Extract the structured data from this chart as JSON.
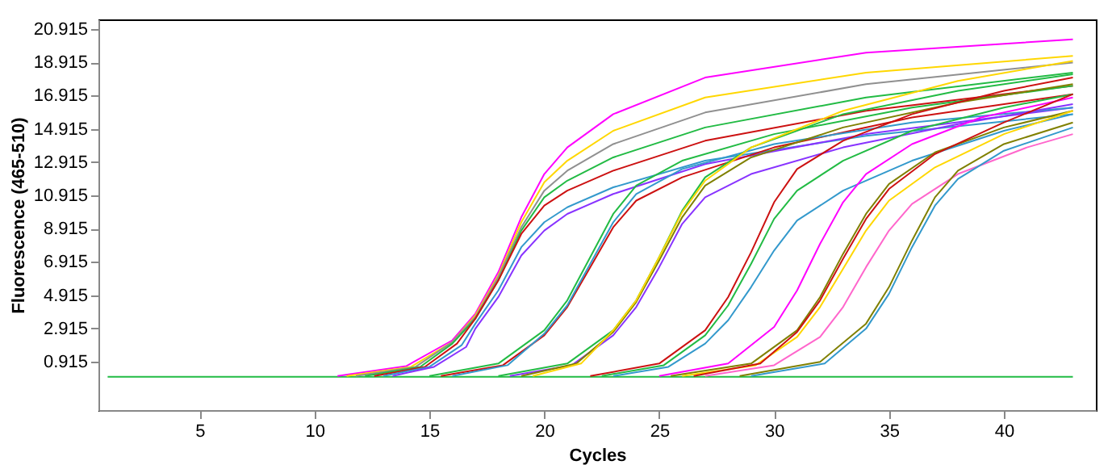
{
  "chart_data": {
    "type": "line",
    "xlabel": "Cycles",
    "ylabel": "Fluorescence (465-510)",
    "xlim": [
      0.6,
      44
    ],
    "ylim": [
      -2,
      21.5
    ],
    "xticks": [
      5,
      10,
      15,
      20,
      25,
      30,
      35,
      40
    ],
    "yticks": [
      0.915,
      2.915,
      4.915,
      6.915,
      8.915,
      10.915,
      12.915,
      14.915,
      16.915,
      18.915,
      20.915
    ],
    "grid": false,
    "legend": false,
    "series": [
      {
        "color": "#22bb44",
        "x": [
          1,
          43
        ],
        "values": [
          0,
          0
        ]
      },
      {
        "color": "#ff00ff",
        "x": [
          11.0,
          14,
          16,
          17,
          18,
          19,
          20,
          21,
          23,
          27,
          34,
          43
        ],
        "values": [
          0.05,
          0.65,
          2.2,
          3.8,
          6.3,
          9.6,
          12.2,
          13.8,
          15.8,
          18.0,
          19.5,
          20.3
        ]
      },
      {
        "color": "#ffd700",
        "x": [
          11.4,
          14.2,
          16,
          17,
          18,
          19,
          20,
          21,
          23,
          27,
          34,
          43
        ],
        "values": [
          0.05,
          0.6,
          2.1,
          3.7,
          6.1,
          9.3,
          11.7,
          13.0,
          14.8,
          16.8,
          18.3,
          19.3
        ]
      },
      {
        "color": "#909090",
        "x": [
          11.8,
          14.4,
          16,
          17,
          18,
          19,
          20,
          21,
          23,
          27,
          34,
          43
        ],
        "values": [
          0.05,
          0.6,
          2.1,
          3.6,
          6.0,
          9.0,
          11.2,
          12.4,
          14.0,
          15.9,
          17.6,
          18.9
        ]
      },
      {
        "color": "#22bb44",
        "x": [
          12.2,
          14.6,
          16,
          17,
          18,
          19,
          20,
          21,
          23,
          27,
          34,
          43
        ],
        "values": [
          0.05,
          0.6,
          2.0,
          3.5,
          5.8,
          8.8,
          10.8,
          11.8,
          13.2,
          15.0,
          16.8,
          18.3
        ]
      },
      {
        "color": "#cc1111",
        "x": [
          12.6,
          14.8,
          16.2,
          17,
          18,
          19,
          20,
          21,
          23,
          27,
          34,
          43
        ],
        "values": [
          0.05,
          0.6,
          2.0,
          3.5,
          5.8,
          8.6,
          10.3,
          11.2,
          12.4,
          14.2,
          16.0,
          17.5
        ]
      },
      {
        "color": "#3399cc",
        "x": [
          13.0,
          15.0,
          16.4,
          17,
          18,
          19,
          20,
          21,
          23,
          27,
          34,
          43
        ],
        "values": [
          0.05,
          0.6,
          1.9,
          3.2,
          5.2,
          7.8,
          9.3,
          10.2,
          11.4,
          13.0,
          14.5,
          15.8
        ]
      },
      {
        "color": "#8833ff",
        "x": [
          13.4,
          15.2,
          16.6,
          17,
          18,
          19,
          20,
          21,
          23,
          27,
          34,
          43
        ],
        "values": [
          0.05,
          0.6,
          1.8,
          2.9,
          4.8,
          7.3,
          8.8,
          9.8,
          11.0,
          12.8,
          14.6,
          16.2
        ]
      },
      {
        "color": "#22bb44",
        "x": [
          15.0,
          18,
          20,
          21,
          22,
          23,
          24,
          26,
          30,
          36,
          43
        ],
        "values": [
          0.05,
          0.8,
          2.8,
          4.6,
          7.2,
          9.8,
          11.5,
          13.0,
          14.6,
          16.2,
          17.5
        ]
      },
      {
        "color": "#cc1111",
        "x": [
          15.5,
          18.2,
          20,
          21,
          22,
          23,
          24,
          26,
          30,
          36,
          43
        ],
        "values": [
          0.05,
          0.7,
          2.5,
          4.2,
          6.6,
          9.0,
          10.6,
          12.0,
          13.8,
          15.6,
          17.0
        ]
      },
      {
        "color": "#3399cc",
        "x": [
          16.0,
          18.4,
          20,
          21,
          22,
          23,
          24,
          26,
          30,
          36,
          43
        ],
        "values": [
          0.05,
          0.7,
          2.6,
          4.3,
          6.8,
          9.3,
          11.0,
          12.5,
          14.0,
          15.3,
          16.2
        ]
      },
      {
        "color": "#22bb44",
        "x": [
          18.0,
          21,
          23,
          24,
          25,
          26,
          27,
          29,
          33,
          38,
          43
        ],
        "values": [
          0.05,
          0.8,
          2.8,
          4.6,
          7.2,
          10.0,
          12.0,
          13.8,
          15.8,
          17.2,
          18.2
        ]
      },
      {
        "color": "#8833ff",
        "x": [
          18.5,
          21.2,
          23,
          24,
          25,
          26,
          27,
          29,
          33,
          38,
          43
        ],
        "values": [
          0.05,
          0.7,
          2.5,
          4.2,
          6.6,
          9.2,
          10.8,
          12.2,
          13.8,
          15.2,
          16.4
        ]
      },
      {
        "color": "#808000",
        "x": [
          19.0,
          21.4,
          23,
          24,
          25,
          26,
          27,
          29,
          33,
          38,
          43
        ],
        "values": [
          0.05,
          0.8,
          2.7,
          4.5,
          7.0,
          9.6,
          11.5,
          13.2,
          15.0,
          16.5,
          17.6
        ]
      },
      {
        "color": "#ffd700",
        "x": [
          19.5,
          21.6,
          23,
          24,
          25,
          26,
          27,
          29,
          33,
          38,
          43
        ],
        "values": [
          0.05,
          0.8,
          2.8,
          4.6,
          7.2,
          9.9,
          11.8,
          13.8,
          16.0,
          17.8,
          19.0
        ]
      },
      {
        "color": "#cc1111",
        "x": [
          22.0,
          25,
          27,
          28,
          29,
          30,
          31,
          33,
          36,
          40,
          43
        ],
        "values": [
          0.05,
          0.8,
          2.8,
          4.8,
          7.5,
          10.5,
          12.5,
          14.2,
          15.8,
          17.2,
          18.0
        ]
      },
      {
        "color": "#22bb44",
        "x": [
          22.5,
          25.2,
          27,
          28,
          29,
          30,
          31,
          33,
          36,
          40,
          43
        ],
        "values": [
          0.05,
          0.7,
          2.5,
          4.3,
          6.8,
          9.5,
          11.2,
          13.0,
          14.8,
          16.2,
          17.0
        ]
      },
      {
        "color": "#3399cc",
        "x": [
          23.0,
          25.4,
          27,
          28,
          29,
          30,
          31,
          33,
          36,
          40,
          43
        ],
        "values": [
          0.05,
          0.6,
          2.0,
          3.4,
          5.4,
          7.6,
          9.4,
          11.2,
          13.0,
          14.8,
          15.8
        ]
      },
      {
        "color": "#ff00ff",
        "x": [
          25.0,
          28,
          30,
          31,
          32,
          33,
          34,
          36,
          39,
          43
        ],
        "values": [
          0.05,
          0.8,
          3.0,
          5.2,
          8.0,
          10.5,
          12.2,
          14.0,
          15.6,
          16.8
        ]
      },
      {
        "color": "#808000",
        "x": [
          25.5,
          29,
          31,
          32,
          33,
          34,
          35,
          37,
          40,
          43
        ],
        "values": [
          0.05,
          0.8,
          2.8,
          4.8,
          7.4,
          9.8,
          11.6,
          13.5,
          15.0,
          16.0
        ]
      },
      {
        "color": "#ffd700",
        "x": [
          26.0,
          29.2,
          31,
          32,
          33,
          34,
          35,
          37,
          40,
          43
        ],
        "values": [
          0.05,
          0.7,
          2.4,
          4.2,
          6.5,
          8.8,
          10.6,
          12.6,
          14.6,
          16.0
        ]
      },
      {
        "color": "#cc1111",
        "x": [
          26.5,
          29.4,
          31,
          32,
          33,
          34,
          35,
          37,
          40,
          43
        ],
        "values": [
          0.05,
          0.8,
          2.7,
          4.6,
          7.1,
          9.5,
          11.3,
          13.4,
          15.3,
          17.0
        ]
      },
      {
        "color": "#ff66cc",
        "x": [
          27.0,
          30,
          32,
          33,
          34,
          35,
          36,
          38,
          41,
          43
        ],
        "values": [
          0.05,
          0.7,
          2.4,
          4.2,
          6.6,
          8.8,
          10.4,
          12.2,
          13.8,
          14.6
        ]
      },
      {
        "color": "#808000",
        "x": [
          28.5,
          32,
          34,
          35,
          36,
          37,
          38,
          40,
          43
        ],
        "values": [
          0.05,
          0.9,
          3.2,
          5.4,
          8.2,
          10.8,
          12.4,
          14.0,
          15.3
        ]
      },
      {
        "color": "#3399cc",
        "x": [
          29.0,
          32.2,
          34,
          35,
          36,
          37,
          38,
          40,
          43
        ],
        "values": [
          0.05,
          0.8,
          2.9,
          5.0,
          7.8,
          10.3,
          11.9,
          13.6,
          15.0
        ]
      }
    ]
  }
}
